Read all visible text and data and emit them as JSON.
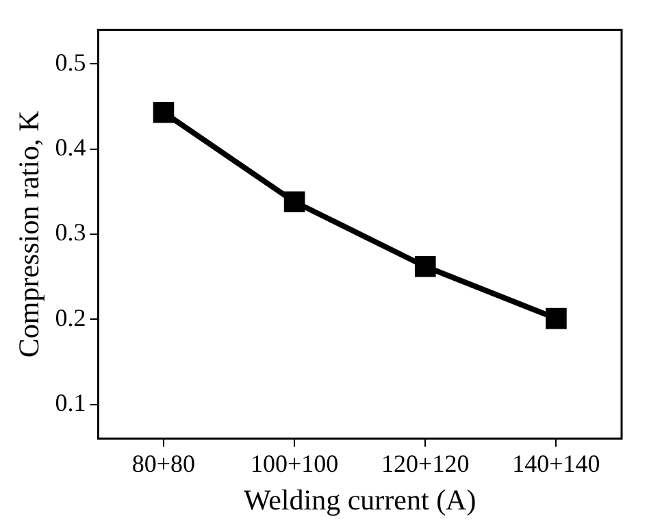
{
  "chart_data": {
    "type": "line",
    "xlabel": "Welding current (A)",
    "ylabel": "Compression ratio, K",
    "categories": [
      "80+80",
      "100+100",
      "120+120",
      "140+140"
    ],
    "series": [
      {
        "color": "#000000",
        "values": [
          0.443,
          0.338,
          0.262,
          0.201
        ]
      }
    ],
    "ylim": [
      0.06,
      0.54
    ],
    "yticks": [
      0.1,
      0.2,
      0.3,
      0.4,
      0.5
    ],
    "grid": false,
    "legend": false,
    "marker": "square",
    "line_style": "solid"
  }
}
